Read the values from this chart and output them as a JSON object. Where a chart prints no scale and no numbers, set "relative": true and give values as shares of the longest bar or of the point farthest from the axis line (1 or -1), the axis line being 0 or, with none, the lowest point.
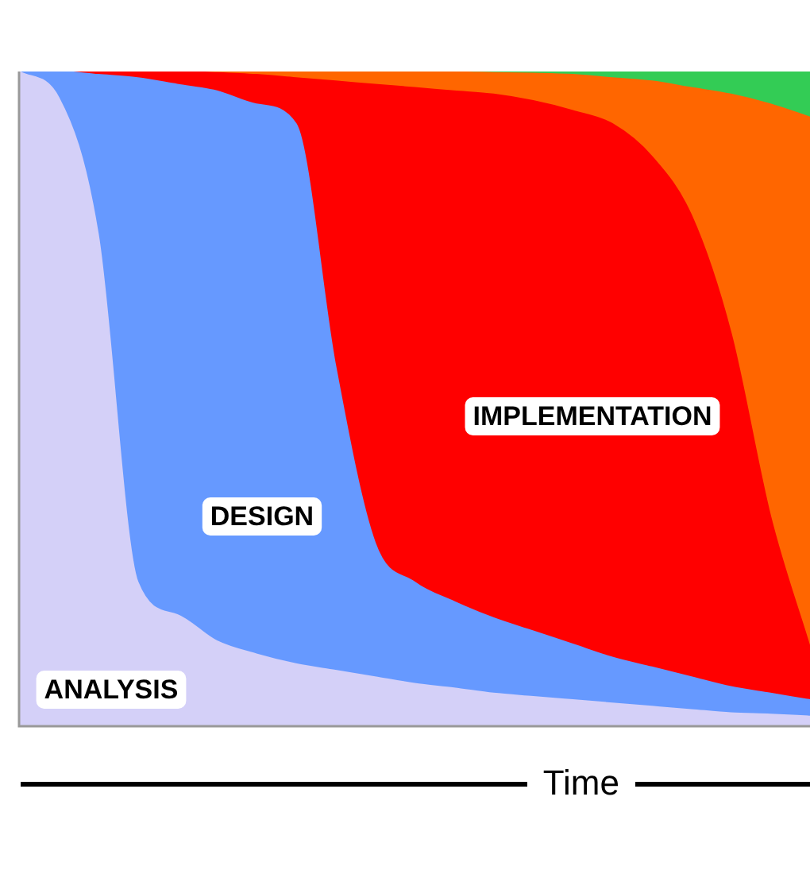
{
  "chart_data": {
    "type": "area",
    "stacked": true,
    "relative": true,
    "xlabel": "Time",
    "legend": false,
    "marker": "none",
    "categories": [
      null,
      null,
      null,
      null,
      null,
      null,
      null,
      null,
      null,
      null,
      null,
      null,
      null,
      null,
      null,
      null,
      null,
      null,
      null,
      null,
      null
    ],
    "series": [
      {
        "name": "ANALYSIS",
        "color": "#d4d0f8",
        "values": [
          1,
          0.96,
          0.75,
          0.22,
          0.17,
          0.13,
          0.11,
          0.095,
          0.085,
          0.075,
          0.065,
          0.058,
          0.05,
          0.045,
          0.04,
          0.035,
          0.03,
          0.025,
          0.02,
          0.018,
          0.015
        ]
      },
      {
        "name": "DESIGN",
        "color": "#6699ff",
        "values": [
          0,
          0.04,
          0.245,
          0.77,
          0.81,
          0.84,
          0.84,
          0.825,
          0.465,
          0.205,
          0.155,
          0.132,
          0.115,
          0.1,
          0.085,
          0.07,
          0.06,
          0.05,
          0.04,
          0.032,
          0.025
        ]
      },
      {
        "name": "IMPLEMENTATION",
        "color": "#ff0000",
        "values": [
          0,
          0,
          0.005,
          0.01,
          0.02,
          0.028,
          0.045,
          0.07,
          0.435,
          0.7,
          0.755,
          0.78,
          0.8,
          0.81,
          0.815,
          0.815,
          0.78,
          0.705,
          0.54,
          0.27,
          0.08
        ]
      },
      {
        "color": "#ff6600",
        "values": [
          0,
          0,
          0,
          0,
          0,
          0.002,
          0.005,
          0.01,
          0.015,
          0.02,
          0.024,
          0.029,
          0.033,
          0.042,
          0.055,
          0.07,
          0.115,
          0.195,
          0.365,
          0.63,
          0.81
        ]
      },
      {
        "color": "#33cc55",
        "values": [
          0,
          0,
          0,
          0,
          0,
          0,
          0,
          0,
          0,
          0,
          0.001,
          0.001,
          0.002,
          0.003,
          0.005,
          0.01,
          0.015,
          0.025,
          0.035,
          0.05,
          0.07
        ]
      }
    ]
  }
}
